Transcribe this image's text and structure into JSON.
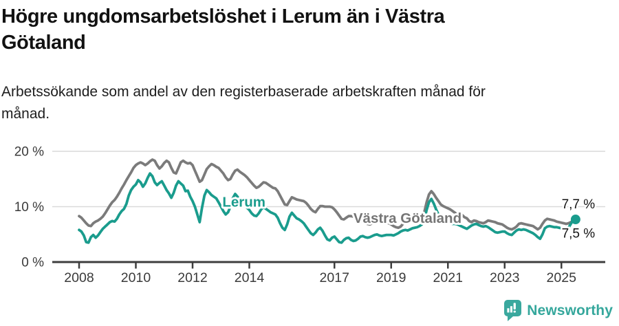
{
  "header": {
    "title_lines": [
      "Högre ungdomsarbetslöshet i Lerum än i Västra",
      "Götaland"
    ],
    "subtitle_lines": [
      "Arbetssökande som andel av den registerbaserade arbetskraften månad för",
      "månad."
    ]
  },
  "chart_data": {
    "type": "line",
    "title": "Högre ungdomsarbetslöshet i Lerum än i Västra Götaland",
    "subtitle": "Arbetssökande som andel av den registerbaserade arbetskraften månad för månad.",
    "unit": "%",
    "x_start": 2008.0,
    "x_end": 2025.5,
    "x_step_months": 1,
    "x_ticks": [
      "2008",
      "2010",
      "2012",
      "2014",
      "2017",
      "2019",
      "2021",
      "2023",
      "2025"
    ],
    "y_ticks": [
      {
        "value": 0,
        "label": "0 %"
      },
      {
        "value": 10,
        "label": "10 %"
      },
      {
        "value": 20,
        "label": "20 %"
      }
    ],
    "y_range": [
      0,
      21.5
    ],
    "grid": "horizontal",
    "legend_position": "inline-labels",
    "series": [
      {
        "name": "Västra Götaland",
        "color": "#7b7b7b",
        "label_color": "#757575",
        "label_x": 2017.67,
        "label_y": 7.1,
        "end_label": "7,5 %",
        "end_dot": false,
        "values": [
          8.3,
          8.0,
          7.5,
          7.0,
          6.6,
          6.5,
          7.0,
          7.3,
          7.5,
          7.8,
          8.2,
          8.8,
          9.5,
          10.2,
          10.8,
          11.2,
          11.8,
          12.5,
          13.3,
          14.0,
          14.8,
          15.5,
          16.2,
          17.0,
          17.5,
          17.8,
          18.0,
          17.8,
          17.5,
          17.8,
          18.2,
          18.5,
          18.3,
          17.5,
          16.9,
          17.3,
          17.9,
          18.3,
          18.0,
          17.0,
          16.2,
          16.0,
          17.0,
          18.0,
          18.3,
          18.0,
          17.8,
          17.9,
          17.5,
          16.5,
          15.5,
          14.5,
          14.8,
          15.8,
          16.8,
          17.3,
          17.7,
          17.5,
          17.2,
          17.0,
          16.5,
          16.0,
          15.3,
          14.8,
          15.0,
          15.8,
          16.5,
          16.7,
          16.3,
          16.0,
          15.7,
          15.3,
          14.8,
          14.3,
          13.8,
          13.4,
          13.6,
          14.0,
          14.4,
          14.3,
          14.0,
          13.7,
          13.4,
          13.3,
          12.8,
          12.0,
          11.2,
          10.4,
          10.3,
          11.0,
          11.7,
          11.5,
          11.3,
          11.2,
          11.1,
          11.0,
          10.7,
          10.2,
          9.6,
          9.2,
          9.0,
          9.6,
          10.1,
          10.1,
          10.0,
          10.0,
          10.0,
          9.9,
          9.5,
          9.0,
          8.4,
          7.8,
          7.7,
          8.0,
          8.3,
          8.3,
          8.2,
          8.0,
          7.8,
          7.5,
          7.2,
          7.0,
          6.9,
          6.8,
          7.0,
          7.3,
          7.6,
          7.7,
          7.5,
          7.3,
          7.1,
          7.0,
          6.8,
          6.5,
          6.3,
          6.2,
          6.4,
          6.9,
          7.3,
          7.4,
          7.3,
          7.4,
          7.6,
          7.8,
          8.0,
          8.2,
          9.0,
          10.8,
          12.2,
          12.8,
          12.3,
          11.6,
          11.0,
          10.4,
          10.1,
          9.9,
          9.7,
          9.5,
          9.2,
          8.9,
          8.6,
          8.8,
          8.5,
          8.1,
          7.9,
          7.4,
          7.2,
          7.5,
          7.4,
          7.2,
          7.1,
          7.0,
          7.2,
          7.5,
          7.4,
          7.3,
          7.2,
          7.0,
          6.9,
          6.8,
          6.5,
          6.2,
          6.0,
          5.9,
          6.1,
          6.4,
          6.9,
          7.0,
          6.9,
          6.8,
          6.7,
          6.6,
          6.5,
          6.2,
          5.9,
          6.2,
          6.9,
          7.5,
          7.8,
          7.7,
          7.6,
          7.5,
          7.3,
          7.2,
          7.1,
          7.0,
          6.9,
          7.0,
          7.2,
          7.3,
          7.5
        ]
      },
      {
        "name": "Lerum",
        "color": "#1a9c8d",
        "label_color": "#1a9c8d",
        "label_x": 2013.05,
        "label_y": 10.0,
        "end_label": "7,7 %",
        "end_dot": true,
        "values": [
          5.8,
          5.5,
          4.8,
          3.6,
          3.5,
          4.5,
          4.9,
          4.4,
          4.8,
          5.4,
          6.0,
          6.4,
          6.8,
          7.2,
          7.4,
          7.3,
          7.8,
          8.6,
          9.2,
          9.6,
          10.5,
          12.0,
          13.0,
          13.6,
          14.0,
          14.8,
          14.4,
          13.6,
          14.2,
          15.2,
          16.0,
          15.5,
          14.4,
          13.9,
          14.3,
          14.6,
          13.8,
          13.0,
          12.4,
          11.6,
          12.5,
          13.8,
          14.6,
          14.2,
          13.8,
          12.8,
          12.9,
          11.8,
          11.0,
          10.0,
          8.6,
          7.2,
          9.8,
          12.0,
          13.0,
          12.6,
          12.1,
          11.8,
          11.5,
          10.8,
          10.0,
          9.2,
          8.6,
          9.0,
          10.0,
          11.5,
          12.3,
          11.8,
          11.2,
          10.6,
          10.2,
          9.8,
          9.4,
          8.8,
          8.4,
          8.3,
          8.8,
          9.5,
          9.9,
          9.6,
          9.3,
          9.0,
          8.8,
          8.6,
          8.0,
          7.0,
          6.2,
          5.8,
          6.8,
          8.2,
          8.9,
          8.4,
          7.9,
          7.7,
          7.4,
          7.0,
          6.4,
          5.8,
          5.2,
          4.9,
          5.3,
          5.9,
          6.2,
          5.6,
          4.8,
          4.1,
          3.9,
          4.4,
          4.6,
          4.1,
          3.6,
          3.5,
          4.0,
          4.3,
          4.4,
          4.0,
          3.8,
          3.9,
          4.2,
          4.6,
          4.7,
          4.5,
          4.4,
          4.5,
          4.7,
          4.9,
          5.0,
          4.8,
          4.7,
          4.8,
          4.9,
          4.9,
          4.9,
          4.8,
          5.0,
          5.2,
          5.5,
          5.7,
          5.8,
          5.7,
          5.9,
          6.1,
          6.2,
          6.3,
          6.5,
          6.8,
          7.6,
          9.4,
          10.8,
          11.4,
          10.6,
          9.5,
          8.6,
          8.0,
          7.7,
          7.5,
          7.2,
          7.0,
          6.9,
          6.9,
          6.8,
          6.6,
          6.4,
          6.2,
          6.0,
          6.3,
          6.6,
          6.8,
          6.9,
          6.7,
          6.5,
          6.4,
          6.5,
          6.3,
          6.0,
          5.7,
          5.4,
          5.3,
          5.4,
          5.5,
          5.5,
          5.2,
          5.0,
          4.9,
          5.3,
          5.7,
          5.9,
          5.8,
          5.9,
          5.8,
          5.6,
          5.4,
          5.2,
          4.9,
          4.5,
          4.2,
          5.0,
          6.1,
          6.4,
          6.5,
          6.4,
          6.3,
          6.3,
          6.2,
          6.1,
          6.0,
          5.9,
          6.2,
          6.9,
          7.6,
          7.7
        ]
      }
    ]
  },
  "footer": {
    "brand": "Newsworthy",
    "brand_color": "#35a79c",
    "logo_icon": "bar-chart-speech-bubble-icon"
  }
}
